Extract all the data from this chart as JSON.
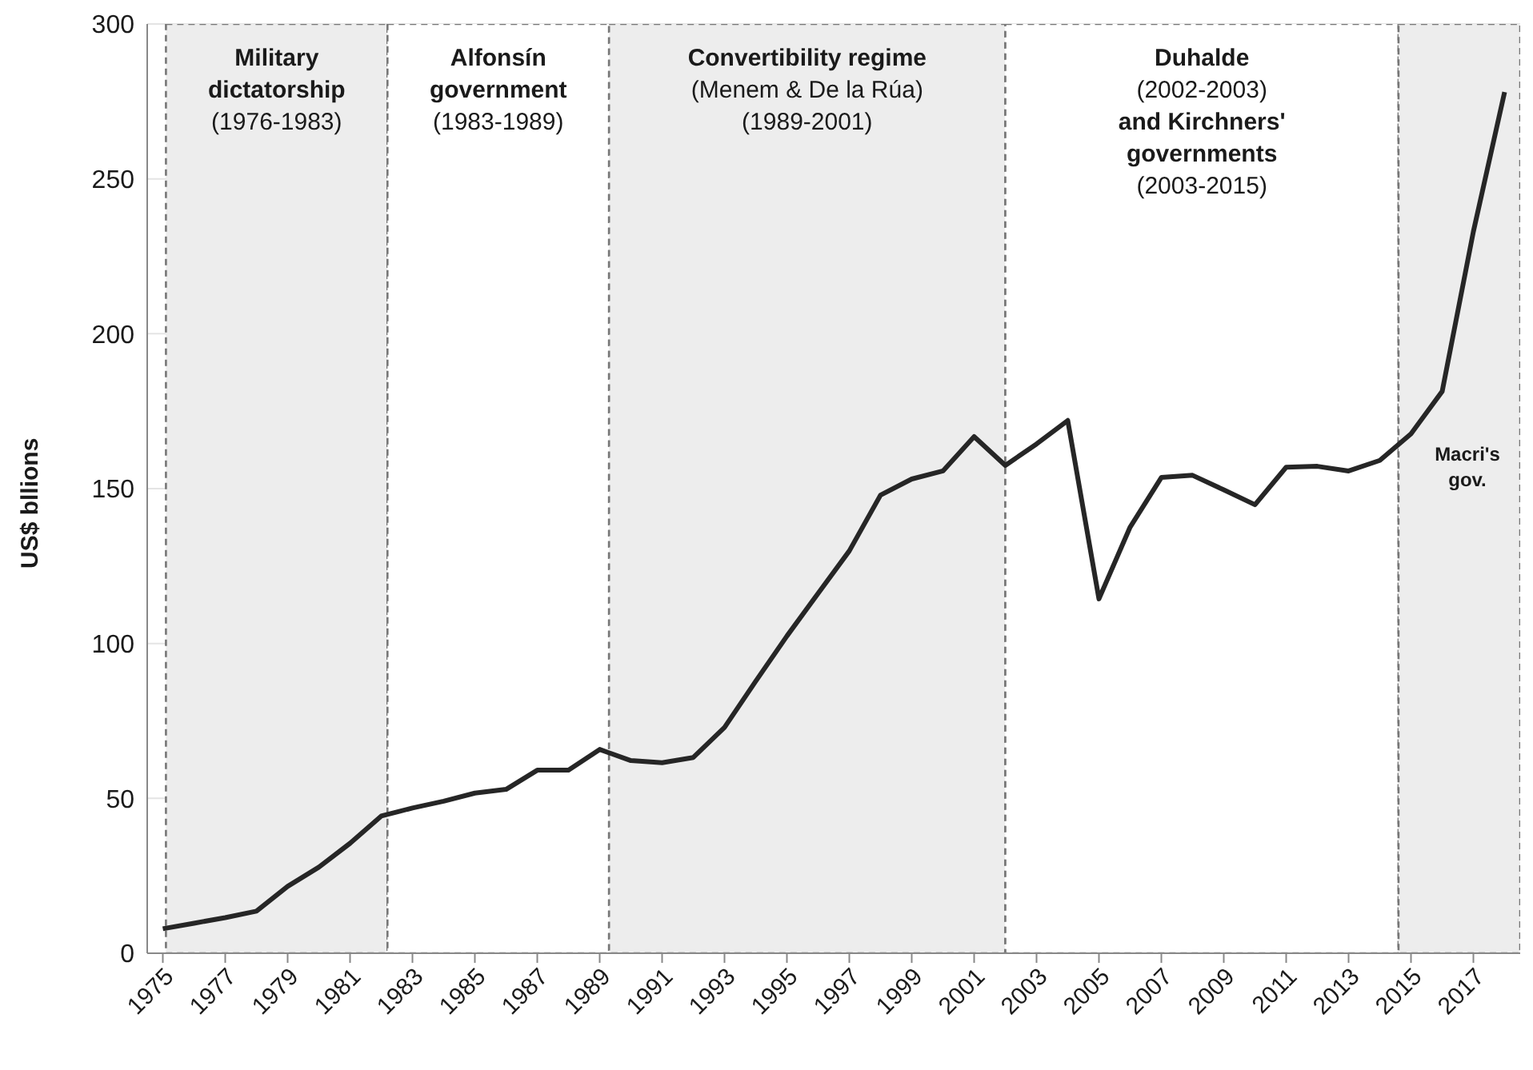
{
  "chart_data": {
    "type": "line",
    "ylabel": "US$ bllions",
    "x": [
      1975,
      1976,
      1977,
      1978,
      1979,
      1980,
      1981,
      1982,
      1983,
      1984,
      1985,
      1986,
      1987,
      1988,
      1989,
      1990,
      1991,
      1992,
      1993,
      1994,
      1995,
      1996,
      1997,
      1998,
      1999,
      2000,
      2001,
      2002,
      2003,
      2004,
      2005,
      2006,
      2007,
      2008,
      2009,
      2010,
      2011,
      2012,
      2013,
      2014,
      2015,
      2016,
      2017,
      2018
    ],
    "values": [
      7.9,
      9.7,
      11.5,
      13.6,
      21.6,
      27.8,
      35.5,
      44.3,
      46.9,
      49.1,
      51.7,
      52.9,
      59.1,
      59.1,
      65.8,
      62.2,
      61.5,
      63.2,
      72.9,
      87.8,
      102.4,
      116.2,
      129.9,
      147.9,
      153.1,
      155.7,
      166.8,
      157.5,
      164.4,
      172,
      114.4,
      137.6,
      153.6,
      154.3,
      149.6,
      144.8,
      156.9,
      157.2,
      155.7,
      159.1,
      167.7,
      181.4,
      233,
      278
    ],
    "color": "#262626",
    "marker": "none",
    "line_style": "solid",
    "xlim": [
      1974.5,
      2018.5
    ],
    "xticks": [
      1975,
      1977,
      1979,
      1981,
      1983,
      1985,
      1987,
      1989,
      1991,
      1993,
      1995,
      1997,
      1999,
      2001,
      2003,
      2005,
      2007,
      2009,
      2011,
      2013,
      2015,
      2017
    ],
    "ylim": [
      0,
      300
    ],
    "yticks": [
      0,
      50,
      100,
      150,
      200,
      250,
      300
    ],
    "grid": "y",
    "bands": [
      {
        "axis": "x",
        "from": 1975.1,
        "to": 1982.2,
        "color": "#ededed",
        "label": "Military\ndictatorship\n(1976-1983)"
      },
      {
        "axis": "x",
        "from": 1982.2,
        "to": 1989.3,
        "color": "#ffffff",
        "label": "Alfonsín\ngovernment\n(1983-1989)"
      },
      {
        "axis": "x",
        "from": 1989.3,
        "to": 2002,
        "color": "#ededed",
        "label": "Convertibility regime\n(Menem & De la Rúa)\n(1989-2001)"
      },
      {
        "axis": "x",
        "from": 2002,
        "to": 2014.6,
        "color": "#ffffff",
        "label": "Duhalde\n(2002-2003)\nand Kirchners'\ngovernments\n(2003-2015)"
      },
      {
        "axis": "x",
        "from": 2014.6,
        "to": 2018.5,
        "color": "#ededed"
      }
    ],
    "annotations": [
      "Macri's\ngov."
    ]
  }
}
